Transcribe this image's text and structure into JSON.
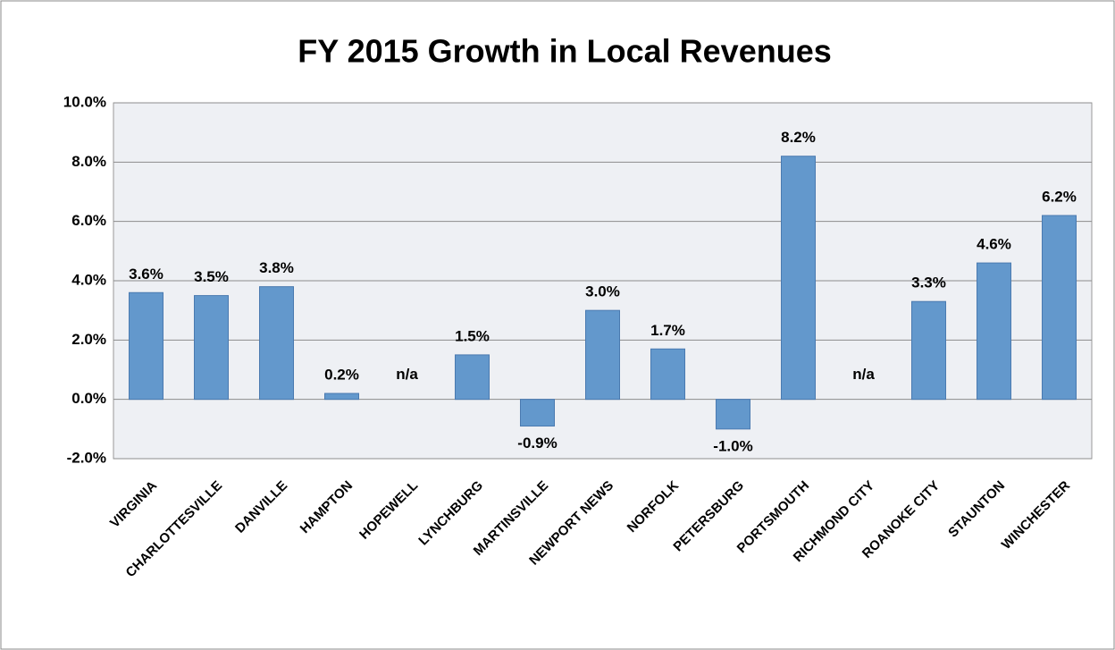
{
  "chart_data": {
    "type": "bar",
    "title": "FY 2015 Growth in Local Revenues",
    "categories": [
      "VIRGINIA",
      "CHARLOTTESVILLE",
      "DANVILLE",
      "HAMPTON",
      "HOPEWELL",
      "LYNCHBURG",
      "MARTINSVILLE",
      "NEWPORT NEWS",
      "NORFOLK",
      "PETERSBURG",
      "PORTSMOUTH",
      "RICHMOND CITY",
      "ROANOKE CITY",
      "STAUNTON",
      "WINCHESTER"
    ],
    "values": [
      3.6,
      3.5,
      3.8,
      0.2,
      null,
      1.5,
      -0.9,
      3.0,
      1.7,
      -1.0,
      8.2,
      null,
      3.3,
      4.6,
      6.2
    ],
    "value_labels": [
      "3.6%",
      "3.5%",
      "3.8%",
      "0.2%",
      "n/a",
      "1.5%",
      "-0.9%",
      "3.0%",
      "1.7%",
      "-1.0%",
      "8.2%",
      "n/a",
      "3.3%",
      "4.6%",
      "6.2%"
    ],
    "color": "#6398cc",
    "ylim": [
      -2,
      10
    ],
    "yticks": [
      {
        "value": -2,
        "label": "-2.0%"
      },
      {
        "value": 0,
        "label": "0.0%"
      },
      {
        "value": 2,
        "label": "2.0%"
      },
      {
        "value": 4,
        "label": "4.0%"
      },
      {
        "value": 6,
        "label": "6.0%"
      },
      {
        "value": 8,
        "label": "8.0%"
      },
      {
        "value": 10,
        "label": "10.0%"
      }
    ],
    "grid": true
  }
}
